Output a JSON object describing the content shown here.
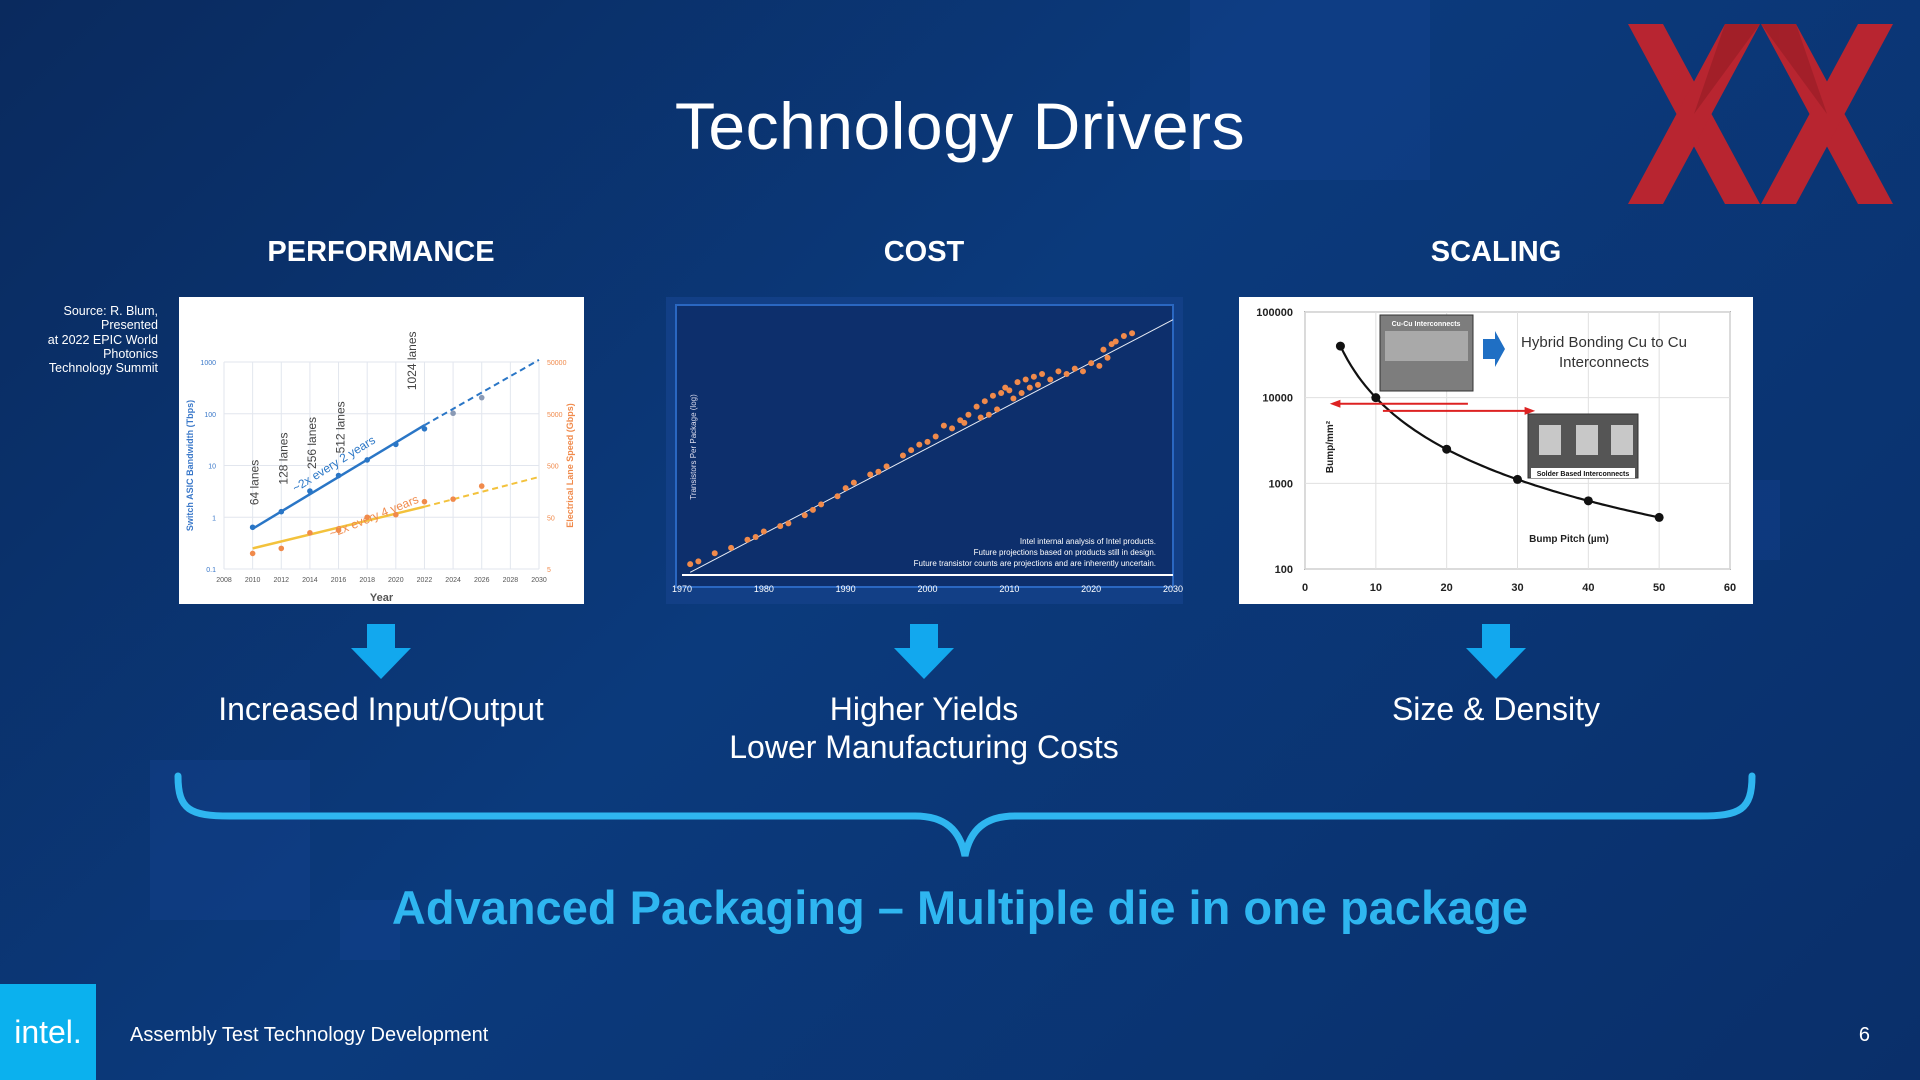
{
  "title": "Technology Drivers",
  "columns": [
    {
      "heading": "PERFORMANCE",
      "caption": [
        "Increased Input/Output"
      ]
    },
    {
      "heading": "COST",
      "caption": [
        "Higher Yields",
        "Lower Manufacturing Costs"
      ]
    },
    {
      "heading": "SCALING",
      "caption": [
        "Size & Density"
      ]
    }
  ],
  "source_note": [
    "Source: R. Blum,",
    "Presented",
    "at 2022 EPIC World",
    "Photonics",
    "Technology Summit"
  ],
  "bottom_banner": "Advanced Packaging – Multiple die in one package",
  "footer": {
    "logo": "intel.",
    "text": "Assembly Test Technology Development",
    "page": "6"
  },
  "colors": {
    "accent": "#2fb6f0",
    "arrow": "#12a8ee",
    "orange": "#f08a4b",
    "blue_series": "#2a76c6",
    "yellow_series": "#f3c23c",
    "logo_red": "#c7242b"
  },
  "chart_data": [
    {
      "type": "scatter",
      "xlabel": "Year",
      "ylabel": "Switch ASIC Bandwidth (Tbps)",
      "y2label": "Electrical Lane Speed (Gbps)",
      "x_ticks": [
        "2008",
        "2010",
        "2012",
        "2014",
        "2016",
        "2018",
        "2020",
        "2022",
        "2024",
        "2026",
        "2028",
        "2030"
      ],
      "y_ticks": [
        "0.1",
        "1",
        "10",
        "100",
        "1000"
      ],
      "y2_ticks": [
        "5",
        "50",
        "500",
        "5000",
        "50000"
      ],
      "xlim": [
        2008,
        2030
      ],
      "ylim_log": [
        0.1,
        1000
      ],
      "series": [
        {
          "name": "Switch ASIC Bandwidth",
          "x": [
            2010,
            2012,
            2014,
            2016,
            2018,
            2020,
            2022,
            2024,
            2026
          ],
          "y": [
            0.64,
            1.28,
            3.2,
            6.4,
            12.8,
            25.6,
            51.2,
            102.4,
            204.8
          ]
        },
        {
          "name": "Electrical Lane Speed",
          "x": [
            2010,
            2012,
            2014,
            2016,
            2018,
            2020,
            2022,
            2024,
            2026
          ],
          "y": [
            10,
            12.5,
            25,
            28,
            50,
            56,
            100,
            112,
            200
          ]
        }
      ],
      "annotations": [
        "64 lanes",
        "128 lanes",
        "256 lanes",
        "512 lanes",
        "1024 lanes",
        "~2x every 2 years",
        "~2x every 4 years"
      ]
    },
    {
      "type": "scatter",
      "ylabel": "Transistors Per Package (log)",
      "x_ticks": [
        "1970",
        "1980",
        "1990",
        "2000",
        "2010",
        "2020",
        "2030"
      ],
      "xlim": [
        1970,
        2030
      ],
      "notes": [
        "Intel internal analysis of Intel products.",
        "Future projections based on products still in design.",
        "Future transistor counts are projections and are inherently uncertain."
      ],
      "series": [
        {
          "name": "Intel products",
          "x": [
            1971,
            1972,
            1974,
            1976,
            1978,
            1979,
            1980,
            1982,
            1983,
            1985,
            1986,
            1987,
            1989,
            1990,
            1991,
            1993,
            1994,
            1995,
            1997,
            1998,
            1999,
            2000,
            2001,
            2002,
            2003,
            2004,
            2004.5,
            2005,
            2006,
            2006.5,
            2007,
            2007.5,
            2008,
            2008.5,
            2009,
            2009.5,
            2010,
            2010.5,
            2011,
            2011.5,
            2012,
            2012.5,
            2013,
            2013.5,
            2014,
            2015,
            2016,
            2017,
            2018,
            2019,
            2020,
            2021,
            2021.5,
            2022,
            2022.5,
            2023,
            2024,
            2025
          ],
          "y": [
            2.4,
            2.5,
            2.8,
            3.0,
            3.3,
            3.4,
            3.6,
            3.8,
            3.9,
            4.2,
            4.4,
            4.6,
            4.9,
            5.2,
            5.4,
            5.7,
            5.8,
            6.0,
            6.4,
            6.6,
            6.8,
            6.9,
            7.1,
            7.5,
            7.4,
            7.7,
            7.6,
            7.9,
            8.2,
            7.8,
            8.4,
            7.9,
            8.6,
            8.1,
            8.7,
            8.9,
            8.8,
            8.5,
            9.1,
            8.7,
            9.2,
            8.9,
            9.3,
            9.0,
            9.4,
            9.2,
            9.5,
            9.4,
            9.6,
            9.5,
            9.8,
            9.7,
            10.3,
            10.0,
            10.5,
            10.6,
            10.8,
            10.9
          ]
        }
      ]
    },
    {
      "type": "line",
      "xlabel": "Bump Pitch (µm)",
      "ylabel": "Bump/mm²",
      "x_ticks": [
        "0",
        "10",
        "20",
        "30",
        "40",
        "50",
        "60"
      ],
      "y_ticks": [
        "100",
        "1000",
        "10000",
        "100000"
      ],
      "xlim": [
        0,
        60
      ],
      "ylim_log": [
        100,
        100000
      ],
      "series": [
        {
          "name": "",
          "x": [
            5,
            10,
            20,
            30,
            40,
            50
          ],
          "y": [
            40000,
            10000,
            2500,
            1111,
            625,
            400
          ]
        }
      ],
      "annotations": [
        "Cu-Cu Interconnects",
        "Hybrid Bonding Cu to Cu Interconnects",
        "Solder Based Interconnects"
      ]
    }
  ]
}
